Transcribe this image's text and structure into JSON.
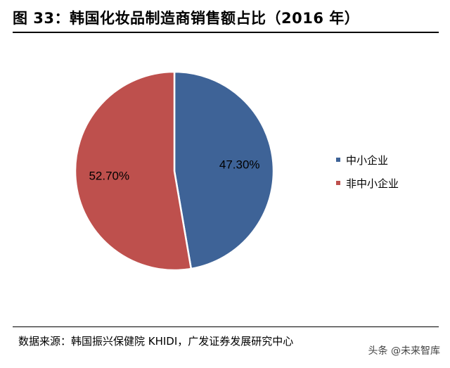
{
  "header": {
    "title": "图 33：韩国化妆品制造商销售额占比（2016 年）"
  },
  "chart_data": {
    "type": "pie",
    "title": "韩国化妆品制造商销售额占比（2016 年）",
    "slices": [
      {
        "name": "中小企业",
        "value": 47.3,
        "label": "47.30%",
        "color": "#3E6397"
      },
      {
        "name": "非中小企业",
        "value": 52.7,
        "label": "52.70%",
        "color": "#BE504D"
      }
    ],
    "legend_position": "right"
  },
  "footer": {
    "source": "数据来源：韩国振兴保健院 KHIDI，广发证券发展研究中心",
    "watermark": "头条 @未来智库"
  }
}
